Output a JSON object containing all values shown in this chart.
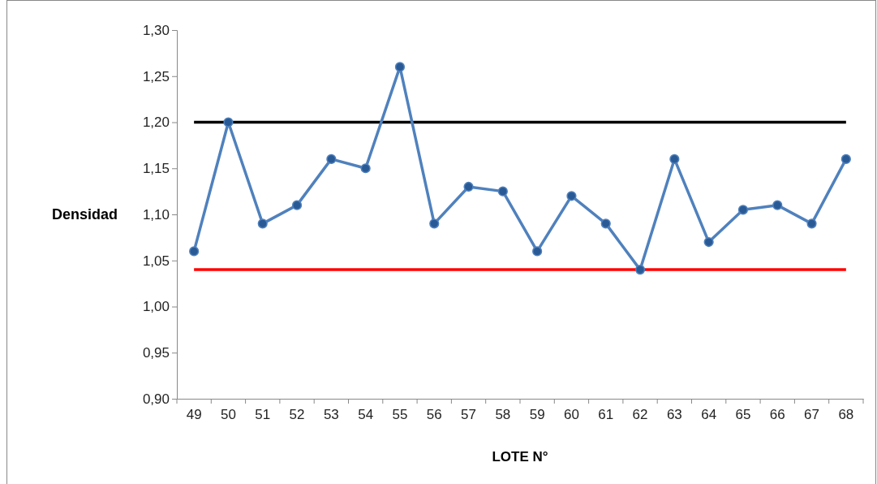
{
  "chart_data": {
    "type": "line",
    "xlabel": "LOTE N°",
    "ylabel": "Densidad",
    "categories": [
      "49",
      "50",
      "51",
      "52",
      "53",
      "54",
      "55",
      "56",
      "57",
      "58",
      "59",
      "60",
      "61",
      "62",
      "63",
      "64",
      "65",
      "66",
      "67",
      "68"
    ],
    "series": [
      {
        "color": "#4f81bd",
        "values": [
          1.06,
          1.2,
          1.09,
          1.11,
          1.16,
          1.15,
          1.26,
          1.09,
          1.13,
          1.125,
          1.06,
          1.12,
          1.09,
          1.04,
          1.16,
          1.07,
          1.105,
          1.11,
          1.09,
          1.16
        ]
      }
    ],
    "ylim": [
      0.9,
      1.3
    ],
    "yticks": [
      {
        "value": 0.9,
        "label": "0,90"
      },
      {
        "value": 0.95,
        "label": "0,95"
      },
      {
        "value": 1.0,
        "label": "1,00"
      },
      {
        "value": 1.05,
        "label": "1,05"
      },
      {
        "value": 1.1,
        "label": "1,10"
      },
      {
        "value": 1.15,
        "label": "1,15"
      },
      {
        "value": 1.2,
        "label": "1,20"
      },
      {
        "value": 1.25,
        "label": "1,25"
      },
      {
        "value": 1.3,
        "label": "1,30"
      }
    ],
    "ref_lines": [
      {
        "axis": "y",
        "value": 1.2,
        "color": "#000000"
      },
      {
        "axis": "y",
        "value": 1.04,
        "color": "#ff0000"
      }
    ],
    "marker": "circle",
    "grid": false
  }
}
